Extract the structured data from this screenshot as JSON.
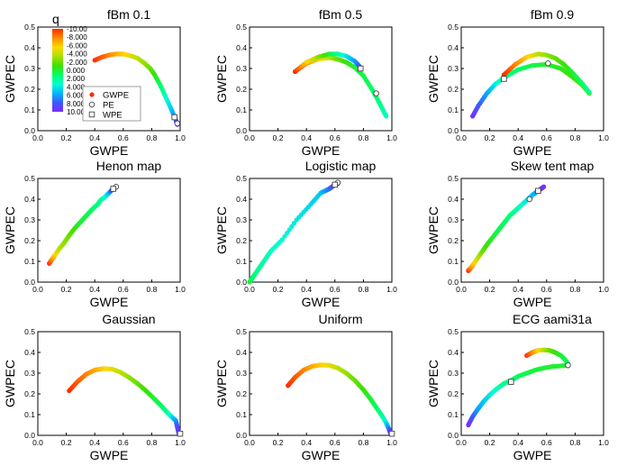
{
  "chart_data": [
    {
      "type": "scatter",
      "title": "fBm 0.1",
      "xlabel": "GWPE",
      "ylabel": "GWPEC",
      "xlim": [
        0,
        1
      ],
      "ylim": [
        0,
        0.5
      ],
      "xticks": [
        "0.0",
        "0.2",
        "0.4",
        "0.6",
        "0.8",
        "1.0"
      ],
      "yticks": [
        "0.0",
        "0.1",
        "0.2",
        "0.3",
        "0.4",
        "0.5"
      ],
      "gwpe_curve": {
        "x": [
          0.4,
          0.45,
          0.5,
          0.55,
          0.6,
          0.65,
          0.7,
          0.75,
          0.79,
          0.82,
          0.86,
          0.9,
          0.94,
          0.97,
          0.98
        ],
        "y": [
          0.34,
          0.355,
          0.365,
          0.37,
          0.37,
          0.362,
          0.35,
          0.325,
          0.3,
          0.27,
          0.22,
          0.16,
          0.1,
          0.05,
          0.03
        ],
        "q": [
          -10,
          -9,
          -8,
          -7,
          -6,
          -5,
          -4,
          -3,
          -2,
          -1,
          1,
          3,
          5,
          7,
          10
        ]
      },
      "pe": {
        "x": 0.98,
        "y": 0.035
      },
      "wpe": {
        "x": 0.96,
        "y": 0.065
      }
    },
    {
      "type": "scatter",
      "title": "fBm 0.5",
      "xlabel": "GWPE",
      "ylabel": "GWPEC",
      "xlim": [
        0,
        1
      ],
      "ylim": [
        0,
        0.5
      ],
      "xticks": [
        "0.0",
        "0.2",
        "0.4",
        "0.6",
        "0.8",
        "1.0"
      ],
      "yticks": [
        "0.0",
        "0.1",
        "0.2",
        "0.3",
        "0.4",
        "0.5"
      ],
      "gwpe_curve": {
        "x": [
          0.32,
          0.4,
          0.48,
          0.56,
          0.62,
          0.68,
          0.74,
          0.8,
          0.86,
          0.9,
          0.93,
          0.96
        ],
        "y": [
          0.285,
          0.325,
          0.345,
          0.352,
          0.345,
          0.33,
          0.305,
          0.265,
          0.2,
          0.15,
          0.11,
          0.07
        ],
        "q": [
          -10,
          -8,
          -6,
          -4,
          -2,
          -1,
          0,
          0.5,
          1,
          1.5,
          2,
          3
        ]
      },
      "gwpe_curve_upper": {
        "x": [
          0.32,
          0.4,
          0.48,
          0.56,
          0.62,
          0.68,
          0.74,
          0.78
        ],
        "y": [
          0.285,
          0.33,
          0.355,
          0.37,
          0.37,
          0.36,
          0.335,
          0.305
        ],
        "q": [
          -10,
          -6,
          -3,
          0,
          2,
          4,
          6,
          8
        ]
      },
      "pe": {
        "x": 0.89,
        "y": 0.18
      },
      "wpe": {
        "x": 0.78,
        "y": 0.3
      }
    },
    {
      "type": "scatter",
      "title": "fBm 0.9",
      "xlabel": "GWPE",
      "ylabel": "GWPEC",
      "xlim": [
        0,
        1
      ],
      "ylim": [
        0,
        0.5
      ],
      "xticks": [
        "0.0",
        "0.2",
        "0.4",
        "0.6",
        "0.8",
        "1.0"
      ],
      "yticks": [
        "0.0",
        "0.1",
        "0.2",
        "0.3",
        "0.4",
        "0.5"
      ],
      "gwpe_curve": {
        "x": [
          0.08,
          0.12,
          0.18,
          0.24,
          0.3,
          0.4,
          0.5,
          0.6,
          0.7,
          0.78,
          0.85,
          0.9
        ],
        "y": [
          0.07,
          0.12,
          0.18,
          0.225,
          0.255,
          0.295,
          0.315,
          0.32,
          0.3,
          0.26,
          0.22,
          0.18
        ],
        "q": [
          10,
          8,
          6,
          4,
          2,
          1,
          0.5,
          0,
          -0.5,
          -1,
          -1.5,
          -2
        ]
      },
      "gwpe_curve_upper": {
        "x": [
          0.3,
          0.38,
          0.46,
          0.54,
          0.6,
          0.66,
          0.72,
          0.78,
          0.84,
          0.9
        ],
        "y": [
          0.27,
          0.32,
          0.355,
          0.37,
          0.365,
          0.35,
          0.32,
          0.28,
          0.235,
          0.185
        ],
        "q": [
          -10,
          -8,
          -6,
          -4,
          -3,
          -2,
          -1,
          0,
          1,
          2
        ]
      },
      "pe": {
        "x": 0.61,
        "y": 0.325
      },
      "wpe": {
        "x": 0.3,
        "y": 0.25
      }
    },
    {
      "type": "scatter",
      "title": "Henon map",
      "xlabel": "GWPE",
      "ylabel": "GWPEC",
      "xlim": [
        0,
        1
      ],
      "ylim": [
        0,
        0.5
      ],
      "xticks": [
        "0.0",
        "0.2",
        "0.4",
        "0.6",
        "0.8",
        "1.0"
      ],
      "yticks": [
        "0.0",
        "0.1",
        "0.2",
        "0.3",
        "0.4",
        "0.5"
      ],
      "gwpe_curve": {
        "x": [
          0.08,
          0.1,
          0.12,
          0.15,
          0.18,
          0.22,
          0.26,
          0.3,
          0.34,
          0.38,
          0.42,
          0.44,
          0.47,
          0.5,
          0.52,
          0.54
        ],
        "y": [
          0.09,
          0.11,
          0.13,
          0.16,
          0.185,
          0.225,
          0.26,
          0.29,
          0.32,
          0.35,
          0.375,
          0.395,
          0.41,
          0.43,
          0.445,
          0.455
        ],
        "q": [
          -10,
          -8,
          -6,
          -4,
          -3,
          -2,
          -1,
          0,
          0.5,
          1,
          1.5,
          2,
          3,
          5,
          8,
          10
        ]
      },
      "pe": {
        "x": 0.55,
        "y": 0.46
      },
      "wpe": {
        "x": 0.53,
        "y": 0.45
      }
    },
    {
      "type": "scatter",
      "title": "Logistic map",
      "xlabel": "GWPE",
      "ylabel": "GWPEC",
      "xlim": [
        0,
        1
      ],
      "ylim": [
        0,
        0.5
      ],
      "xticks": [
        "0.0",
        "0.2",
        "0.4",
        "0.6",
        "0.8",
        "1.0"
      ],
      "yticks": [
        "0.0",
        "0.1",
        "0.2",
        "0.3",
        "0.4",
        "0.5"
      ],
      "gwpe_curve": {
        "x": [
          0.0,
          0.01,
          0.02,
          0.04,
          0.07,
          0.1,
          0.15,
          0.23,
          0.33,
          0.43,
          0.5,
          0.53,
          0.56,
          0.58,
          0.6,
          0.62
        ],
        "y": [
          0.0,
          0.01,
          0.02,
          0.04,
          0.07,
          0.1,
          0.15,
          0.205,
          0.3,
          0.375,
          0.43,
          0.44,
          0.45,
          0.46,
          0.47,
          0.475
        ],
        "q": [
          0,
          0.5,
          1,
          1.5,
          2,
          2.5,
          3,
          3.5,
          4,
          4.5,
          5,
          6,
          7,
          8,
          9,
          10
        ]
      },
      "pe": {
        "x": 0.62,
        "y": 0.48
      },
      "wpe": {
        "x": 0.6,
        "y": 0.47
      }
    },
    {
      "type": "scatter",
      "title": "Skew tent map",
      "xlabel": "GWPE",
      "ylabel": "GWPEC",
      "xlim": [
        0,
        1
      ],
      "ylim": [
        0,
        0.5
      ],
      "xticks": [
        "0.0",
        "0.2",
        "0.4",
        "0.6",
        "0.8",
        "1.0"
      ],
      "yticks": [
        "0.0",
        "0.1",
        "0.2",
        "0.3",
        "0.4",
        "0.5"
      ],
      "gwpe_curve": {
        "x": [
          0.05,
          0.07,
          0.09,
          0.12,
          0.15,
          0.18,
          0.22,
          0.26,
          0.3,
          0.34,
          0.38,
          0.42,
          0.46,
          0.5,
          0.53,
          0.56,
          0.58
        ],
        "y": [
          0.055,
          0.07,
          0.09,
          0.12,
          0.15,
          0.18,
          0.215,
          0.25,
          0.285,
          0.32,
          0.345,
          0.37,
          0.395,
          0.42,
          0.435,
          0.45,
          0.46
        ],
        "q": [
          -10,
          -8,
          -6,
          -4,
          -2,
          -1,
          0,
          0.5,
          1,
          1.5,
          2,
          3,
          4,
          5,
          6,
          8,
          10
        ]
      },
      "pe": {
        "x": 0.48,
        "y": 0.4
      },
      "wpe": {
        "x": 0.54,
        "y": 0.44
      }
    },
    {
      "type": "scatter",
      "title": "Gaussian",
      "xlabel": "GWPE",
      "ylabel": "GWPEC",
      "xlim": [
        0,
        1
      ],
      "ylim": [
        0,
        0.5
      ],
      "xticks": [
        "0.0",
        "0.2",
        "0.4",
        "0.6",
        "0.8",
        "1.0"
      ],
      "yticks": [
        "0.0",
        "0.1",
        "0.2",
        "0.3",
        "0.4",
        "0.5"
      ],
      "gwpe_curve": {
        "x": [
          0.22,
          0.28,
          0.34,
          0.4,
          0.46,
          0.52,
          0.58,
          0.64,
          0.7,
          0.76,
          0.82,
          0.87,
          0.91,
          0.94,
          0.97,
          0.98,
          0.99
        ],
        "y": [
          0.215,
          0.26,
          0.295,
          0.315,
          0.322,
          0.32,
          0.305,
          0.28,
          0.25,
          0.215,
          0.175,
          0.14,
          0.11,
          0.09,
          0.07,
          0.04,
          0.01
        ],
        "q": [
          -10,
          -9,
          -8,
          -7,
          -6,
          -5,
          -4,
          -3,
          -2,
          -1,
          0,
          1,
          2,
          4,
          6,
          8,
          10
        ]
      },
      "pe": {
        "x": 1.0,
        "y": 0.008
      },
      "wpe": {
        "x": 1.0,
        "y": 0.008
      }
    },
    {
      "type": "scatter",
      "title": "Uniform",
      "xlabel": "GWPE",
      "ylabel": "GWPEC",
      "xlim": [
        0,
        1
      ],
      "ylim": [
        0,
        0.5
      ],
      "xticks": [
        "0.0",
        "0.2",
        "0.4",
        "0.6",
        "0.8",
        "1.0"
      ],
      "yticks": [
        "0.0",
        "0.1",
        "0.2",
        "0.3",
        "0.4",
        "0.5"
      ],
      "gwpe_curve": {
        "x": [
          0.27,
          0.32,
          0.38,
          0.44,
          0.5,
          0.56,
          0.62,
          0.68,
          0.74,
          0.8,
          0.85,
          0.89,
          0.93,
          0.96,
          0.98,
          0.99
        ],
        "y": [
          0.24,
          0.28,
          0.315,
          0.333,
          0.34,
          0.338,
          0.325,
          0.3,
          0.265,
          0.22,
          0.175,
          0.135,
          0.095,
          0.06,
          0.03,
          0.01
        ],
        "q": [
          -10,
          -9,
          -8,
          -7,
          -6,
          -5,
          -4,
          -3,
          -2,
          -1,
          0,
          1,
          2,
          4,
          7,
          10
        ]
      },
      "pe": {
        "x": 1.0,
        "y": 0.008
      },
      "wpe": {
        "x": 1.0,
        "y": 0.008
      }
    },
    {
      "type": "scatter",
      "title": "ECG aami31a",
      "xlabel": "GWPE",
      "ylabel": "GWPEC",
      "xlim": [
        0,
        1
      ],
      "ylim": [
        0,
        0.5
      ],
      "xticks": [
        "0.0",
        "0.2",
        "0.4",
        "0.6",
        "0.8",
        "1.0"
      ],
      "yticks": [
        "0.0",
        "0.1",
        "0.2",
        "0.3",
        "0.4",
        "0.5"
      ],
      "gwpe_curve": {
        "x": [
          0.05,
          0.08,
          0.12,
          0.16,
          0.2,
          0.25,
          0.3,
          0.35,
          0.4,
          0.46,
          0.52,
          0.58,
          0.64,
          0.7,
          0.75
        ],
        "y": [
          0.05,
          0.09,
          0.13,
          0.165,
          0.195,
          0.225,
          0.25,
          0.265,
          0.285,
          0.3,
          0.315,
          0.325,
          0.332,
          0.335,
          0.338
        ],
        "q": [
          10,
          8,
          6,
          5,
          4,
          3,
          2,
          1.5,
          1,
          0.5,
          0.2,
          0,
          0,
          0,
          0
        ]
      },
      "gwpe_curve_upper": {
        "x": [
          0.46,
          0.5,
          0.54,
          0.58,
          0.62,
          0.66,
          0.7,
          0.73,
          0.75
        ],
        "y": [
          0.385,
          0.4,
          0.41,
          0.412,
          0.41,
          0.4,
          0.385,
          0.365,
          0.345
        ],
        "q": [
          -10,
          -8,
          -6,
          -4,
          -2,
          -1,
          0,
          0.5,
          1
        ]
      },
      "pe": {
        "x": 0.75,
        "y": 0.338
      },
      "wpe": {
        "x": 0.35,
        "y": 0.258
      }
    }
  ],
  "colorbar": {
    "label": "q",
    "ticks": [
      "-10.00",
      "-8.000",
      "-6.000",
      "-4.000",
      "-2.000",
      "0.000",
      "2.000",
      "4.000",
      "6.000",
      "8.000",
      "10.00"
    ],
    "colors": [
      "#ff2a00",
      "#ff8a00",
      "#ffd800",
      "#a8e000",
      "#3ee000",
      "#00ff66",
      "#00ffd0",
      "#00b4ff",
      "#3c5aff",
      "#7a2cff"
    ]
  },
  "legend": {
    "items": [
      {
        "label": "GWPE",
        "marker": "filled-circle"
      },
      {
        "label": "PE",
        "marker": "open-circle"
      },
      {
        "label": "WPE",
        "marker": "open-square"
      }
    ]
  }
}
